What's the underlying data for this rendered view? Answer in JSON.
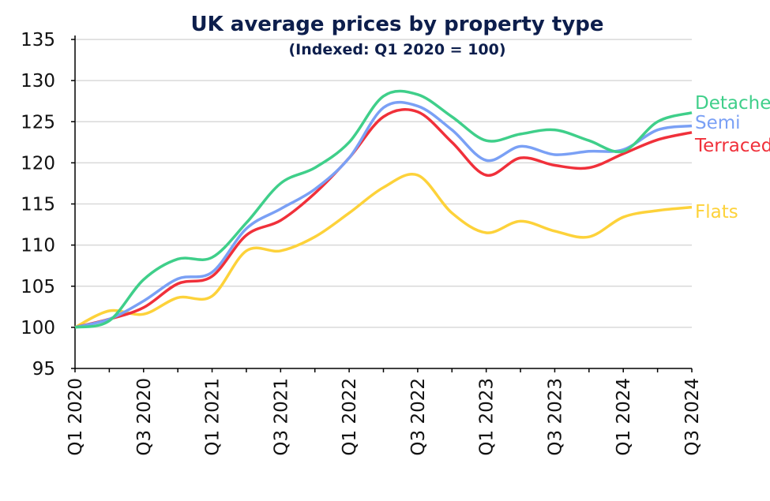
{
  "chart_data": {
    "type": "line",
    "title": "UK average prices by property type",
    "subtitle": "(Indexed: Q1 2020 = 100)",
    "xlabel": "",
    "ylabel": "",
    "ylim": [
      95,
      135
    ],
    "yticks": [
      95,
      100,
      105,
      110,
      115,
      120,
      125,
      130,
      135
    ],
    "grid": true,
    "legend": "inline labels at line ends (right)",
    "categories": [
      "Q1 2020",
      "Q2 2020",
      "Q3 2020",
      "Q4 2020",
      "Q1 2021",
      "Q2 2021",
      "Q3 2021",
      "Q4 2021",
      "Q1 2022",
      "Q2 2022",
      "Q3 2022",
      "Q4 2022",
      "Q1 2023",
      "Q2 2023",
      "Q3 2023",
      "Q4 2023",
      "Q1 2024",
      "Q2 2024",
      "Q3 2024"
    ],
    "xtick_labels": [
      "Q1 2020",
      "Q3 2020",
      "Q1 2021",
      "Q3 2021",
      "Q1 2022",
      "Q3 2022",
      "Q1 2023",
      "Q3 2023",
      "Q1 2024",
      "Q3 2024"
    ],
    "series": [
      {
        "name": "Detached",
        "color": "#3fcf8a",
        "values": [
          100,
          100.8,
          105.8,
          108.3,
          108.5,
          112.7,
          117.5,
          119.4,
          122.5,
          128.1,
          128.3,
          125.6,
          122.7,
          123.5,
          124.0,
          122.7,
          121.4,
          125.0,
          126.1
        ]
      },
      {
        "name": "Semi",
        "color": "#7aa0f5",
        "values": [
          100,
          101.0,
          103.2,
          105.9,
          106.7,
          112.0,
          114.4,
          116.8,
          120.6,
          126.7,
          126.9,
          124.0,
          120.3,
          122.0,
          121.0,
          121.4,
          121.6,
          124.0,
          124.5
        ]
      },
      {
        "name": "Terraced",
        "color": "#f0303a",
        "values": [
          100,
          101.0,
          102.4,
          105.3,
          106.2,
          111.2,
          113.0,
          116.3,
          120.6,
          125.6,
          126.2,
          122.5,
          118.5,
          120.6,
          119.7,
          119.4,
          121.1,
          122.8,
          123.7
        ]
      },
      {
        "name": "Flats",
        "color": "#fdd23a",
        "values": [
          100,
          102.0,
          101.6,
          103.6,
          103.8,
          109.3,
          109.3,
          111.0,
          113.9,
          117.0,
          118.5,
          113.9,
          111.5,
          112.9,
          111.7,
          111.0,
          113.4,
          114.2,
          114.6
        ]
      }
    ]
  }
}
